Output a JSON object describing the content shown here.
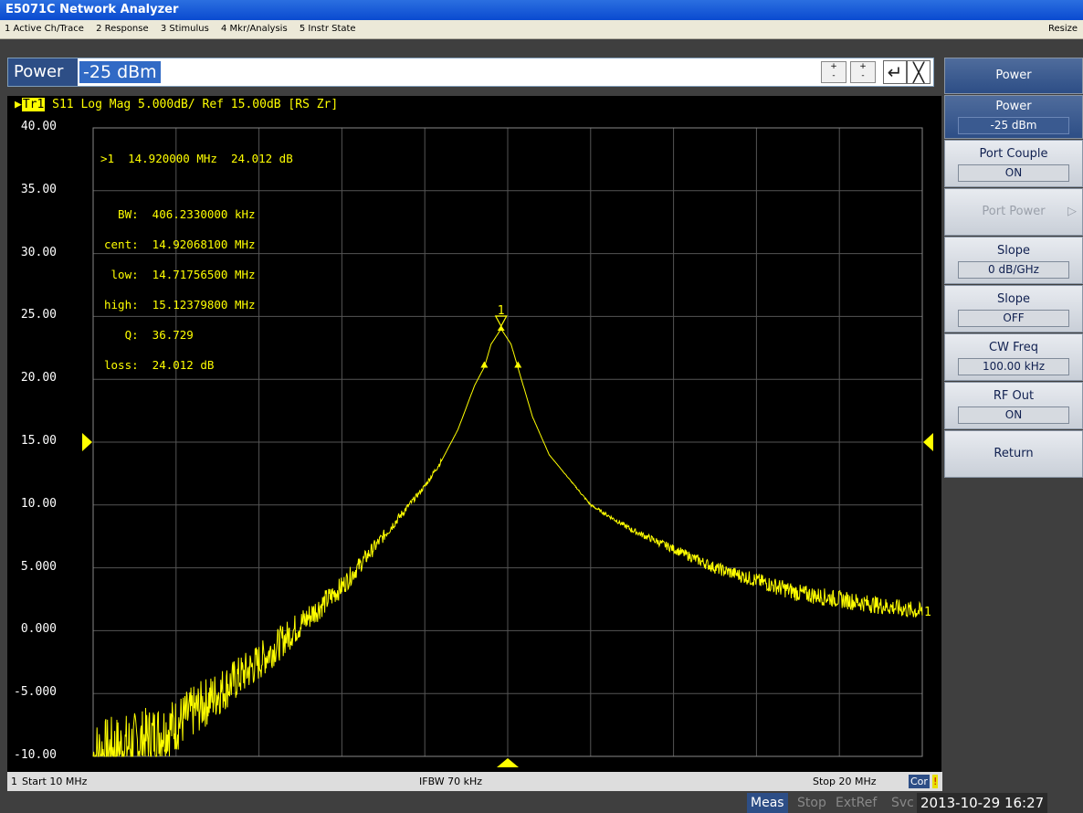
{
  "window": {
    "title": "E5071C Network Analyzer"
  },
  "menu": {
    "items": [
      "1 Active Ch/Trace",
      "2 Response",
      "3 Stimulus",
      "4 Mkr/Analysis",
      "5 Instr State"
    ],
    "resize": "Resize"
  },
  "entry": {
    "label": "Power",
    "value": "-25 dBm",
    "spin_up": "+",
    "spin_down": "-",
    "enter": "↵",
    "close": "╳"
  },
  "trace": {
    "tag": "Tr1",
    "header": " S11 Log Mag 5.000dB/ Ref 15.00dB [RS Zr]"
  },
  "marker_info": {
    "line1": ">1  14.920000 MHz  24.012 dB",
    "bw": "  BW:  406.2330000 kHz",
    "cent": "cent:  14.92068100 MHz",
    "low": " low:  14.71756500 MHz",
    "high": "high:  15.12379800 MHz",
    "q": "   Q:  36.729",
    "loss": "loss:  24.012 dB"
  },
  "chart_data": {
    "type": "line",
    "title": "",
    "xlabel": "",
    "ylabel": "",
    "xlim": [
      10,
      20
    ],
    "ylim": [
      -10,
      40
    ],
    "x_unit": "MHz",
    "y_ticks": [
      "40.00",
      "35.00",
      "30.00",
      "25.00",
      "20.00",
      "15.00",
      "10.00",
      "5.000",
      "0.000",
      "-5.000",
      "-10.00"
    ],
    "ref_level": 15,
    "grid": true,
    "series": [
      {
        "x": [
          10,
          10.5,
          11,
          11.5,
          12,
          12.5,
          13,
          13.5,
          14,
          14.2,
          14.4,
          14.6,
          14.72,
          14.8,
          14.92,
          15.04,
          15.12,
          15.3,
          15.5,
          16,
          16.5,
          17,
          17.5,
          18,
          18.5,
          19,
          19.5,
          20
        ],
        "y": [
          -10,
          -9,
          -7.5,
          -5,
          -2.5,
          0.5,
          3.5,
          7.5,
          11.5,
          13.5,
          16,
          19.5,
          21,
          22.8,
          24,
          22.8,
          21,
          17,
          14,
          10,
          8,
          6.5,
          5,
          4,
          3,
          2.5,
          2,
          1.5
        ]
      }
    ],
    "markers": [
      {
        "label": "1",
        "x": 14.92,
        "y": 24.012
      }
    ],
    "bw_points": [
      {
        "x": 14.71756,
        "y": 21.0
      },
      {
        "x": 15.1238,
        "y": 21.0
      }
    ],
    "end_label": "1"
  },
  "status": {
    "channel": "1",
    "start": "Start 10 MHz",
    "ifbw": "IFBW 70 kHz",
    "stop": "Stop 20 MHz",
    "cor": "Cor",
    "warn": "!"
  },
  "softkeys": [
    {
      "label": "Power",
      "value": "-25 dBm",
      "header": true
    },
    {
      "label": "Port Couple",
      "value": "ON"
    },
    {
      "label": "Port Power",
      "value": "",
      "disabled": true
    },
    {
      "label": "Slope",
      "value": "0 dB/GHz"
    },
    {
      "label": "Slope",
      "value": "OFF"
    },
    {
      "label": "CW Freq",
      "value": "100.00 kHz"
    },
    {
      "label": "RF Out",
      "value": "ON"
    },
    {
      "label": "Return",
      "value": ""
    }
  ],
  "softkey_title": "Power",
  "bottom": {
    "meas": "Meas",
    "stop": "Stop",
    "extref": "ExtRef",
    "svc": "Svc",
    "datetime": "2013-10-29 16:27"
  },
  "colors": {
    "trace": "#ffff00",
    "grid": "#555555",
    "panel": "#3f3f3f"
  }
}
